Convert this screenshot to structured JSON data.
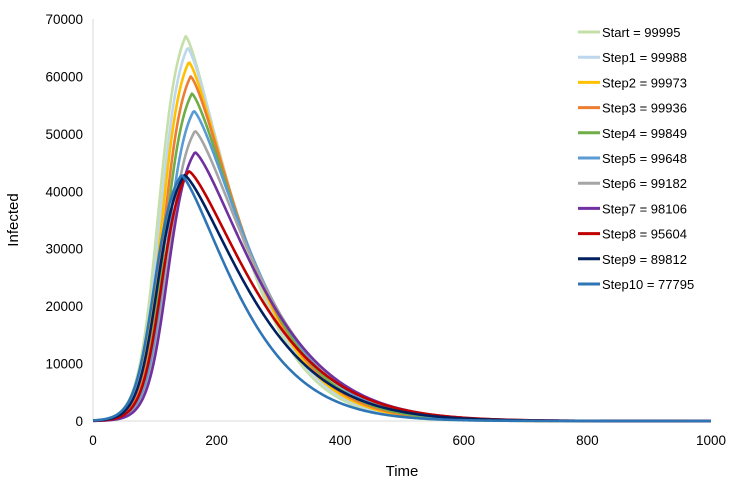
{
  "chart_data": {
    "type": "line",
    "title": "",
    "xlabel": "Time",
    "ylabel": "Infected",
    "xlim": [
      0,
      1000
    ],
    "ylim": [
      0,
      70000
    ],
    "xticks": [
      0,
      200,
      400,
      600,
      800,
      1000
    ],
    "xtick_labels": [
      "0",
      "200",
      "400",
      "600",
      "800",
      "1000"
    ],
    "yticks": [
      0,
      10000,
      20000,
      30000,
      40000,
      50000,
      60000,
      70000
    ],
    "ytick_labels": [
      "0",
      "10000",
      "20000",
      "30000",
      "40000",
      "50000",
      "60000",
      "70000"
    ],
    "grid": false,
    "legend_position": "top-right",
    "series": [
      {
        "name": "Start = 99995",
        "color": "#C5DFA8",
        "peak_time": 150,
        "peak_value": 67000,
        "decay_scale": 115
      },
      {
        "name": "Step1 = 99988",
        "color": "#BDD7EE",
        "peak_time": 153,
        "peak_value": 65000,
        "decay_scale": 118
      },
      {
        "name": "Step2 = 99973",
        "color": "#FFC000",
        "peak_time": 155,
        "peak_value": 62500,
        "decay_scale": 121
      },
      {
        "name": "Step3 = 99936",
        "color": "#ED7D31",
        "peak_time": 158,
        "peak_value": 60000,
        "decay_scale": 124
      },
      {
        "name": "Step4 = 99849",
        "color": "#70AD47",
        "peak_time": 160,
        "peak_value": 57000,
        "decay_scale": 128
      },
      {
        "name": "Step5 = 99648",
        "color": "#5B9BD5",
        "peak_time": 163,
        "peak_value": 54000,
        "decay_scale": 133
      },
      {
        "name": "Step6 = 99182",
        "color": "#A5A5A5",
        "peak_time": 165,
        "peak_value": 50500,
        "decay_scale": 138
      },
      {
        "name": "Step7 = 98106",
        "color": "#7030A0",
        "peak_time": 165,
        "peak_value": 46800,
        "decay_scale": 144
      },
      {
        "name": "Step8 = 95604",
        "color": "#C00000",
        "peak_time": 155,
        "peak_value": 43500,
        "decay_scale": 150
      },
      {
        "name": "Step9 = 89812",
        "color": "#002060",
        "peak_time": 148,
        "peak_value": 42800,
        "decay_scale": 146
      },
      {
        "name": "Step10 = 77795",
        "color": "#2E75B6",
        "peak_time": 143,
        "peak_value": 42800,
        "decay_scale": 126
      }
    ]
  }
}
